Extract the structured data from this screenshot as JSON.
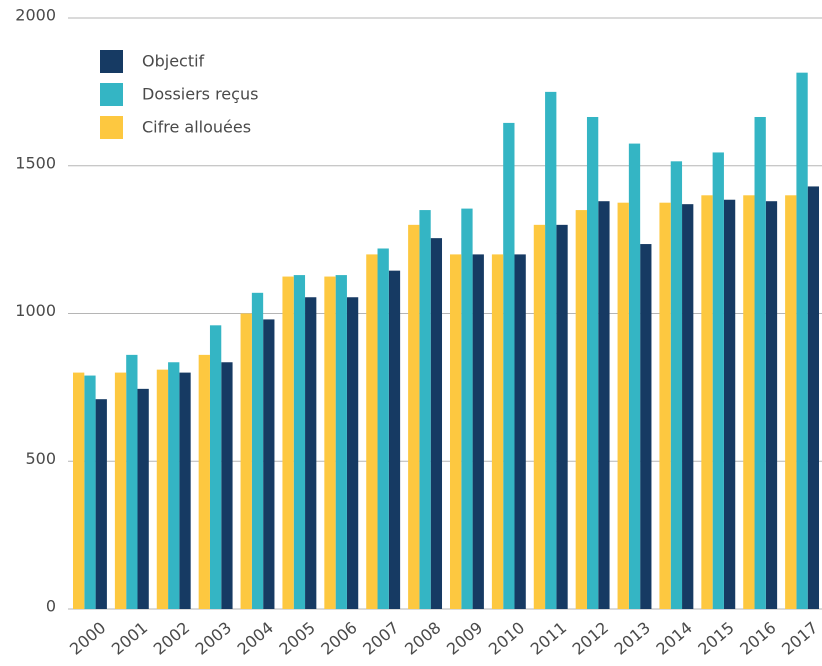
{
  "chart_data": {
    "type": "bar",
    "categories": [
      "2000",
      "2001",
      "2002",
      "2003",
      "2004",
      "2005",
      "2006",
      "2007",
      "2008",
      "2009",
      "2010",
      "2011",
      "2012",
      "2013",
      "2014",
      "2015",
      "2016",
      "2017"
    ],
    "series": [
      {
        "name": "Objectif",
        "color": "#163a63",
        "values": [
          710,
          745,
          800,
          835,
          980,
          1055,
          1055,
          1145,
          1255,
          1200,
          1200,
          1300,
          1380,
          1235,
          1370,
          1385,
          1380,
          1430
        ]
      },
      {
        "name": "Dossiers reçus",
        "color": "#34b5c4",
        "values": [
          790,
          860,
          835,
          960,
          1070,
          1130,
          1130,
          1220,
          1350,
          1355,
          1645,
          1750,
          1665,
          1575,
          1515,
          1545,
          1665,
          1815
        ]
      },
      {
        "name": "Cifre allouées",
        "color": "#fdc840",
        "values": [
          800,
          800,
          810,
          860,
          1000,
          1125,
          1125,
          1200,
          1300,
          1200,
          1200,
          1300,
          1350,
          1375,
          1375,
          1400,
          1400,
          1400
        ]
      }
    ],
    "ylim": [
      0,
      2000
    ],
    "yticks": [
      0,
      500,
      1000,
      1500,
      2000
    ],
    "grid": true,
    "legend": "top-left"
  }
}
